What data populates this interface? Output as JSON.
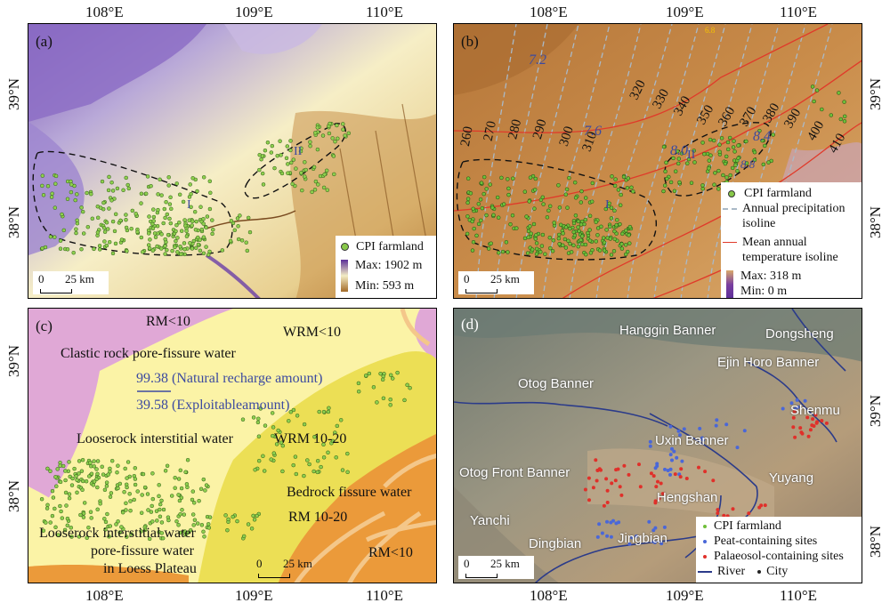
{
  "axes": {
    "lon_top_a": [
      "108°E",
      "109°E",
      "110°E"
    ],
    "lon_top_b": [
      "108°E",
      "109°E",
      "110°E"
    ],
    "lon_bottom_c": [
      "108°E",
      "109°E",
      "110°E"
    ],
    "lon_bottom_d": [
      "108°E",
      "109°E",
      "110°E"
    ],
    "lat_left_a": [
      "39°N",
      "38°N"
    ],
    "lat_right_b": [
      "39°N",
      "38°N"
    ],
    "lat_left_c": [
      "39°N",
      "38°N"
    ],
    "lat_right_d": [
      "39°N",
      "38°N"
    ]
  },
  "panel_a": {
    "label": "(a)",
    "region_labels": [
      "I",
      "II"
    ],
    "legend": {
      "farmland": "CPI farmland",
      "max": "Max: 1902 m",
      "min": "Min: 593 m"
    },
    "scale": {
      "zero": "0",
      "dist": "25 km"
    },
    "colors": {
      "high": "#6a3fa8",
      "mid": "#f3e7b0",
      "low": "#b37a33"
    }
  },
  "panel_b": {
    "label": "(b)",
    "region_labels": [
      "I",
      "II"
    ],
    "precip_labels": [
      "260",
      "270",
      "280",
      "290",
      "300",
      "310",
      "320",
      "330",
      "340",
      "350",
      "360",
      "370",
      "380",
      "390",
      "400",
      "410"
    ],
    "temp_labels": [
      "7.2",
      "7.6",
      "8.0",
      "8.4",
      "8.8",
      "6.8"
    ],
    "legend": {
      "farmland": "CPI farmland",
      "precip_line1": "Annual precipitation",
      "precip_line2": "isoline",
      "temp_line1": "Mean annual",
      "temp_line2": "temperature isoline",
      "max": "Max: 318 m",
      "min": "Min: 0 m"
    },
    "scale": {
      "zero": "0",
      "dist": "25 km"
    }
  },
  "panel_c": {
    "label": "(c)",
    "texts": {
      "rm_top": "RM<10",
      "wrm_top": "WRM<10",
      "clastic": "Clastic rock pore-fissure water",
      "natural": "99.38 (Natural recharge amount)",
      "exploitable": "39.58 (Exploitableamount)",
      "loose": "Looserock interstitial water",
      "wrm_mid": "WRM 10-20",
      "bedrock": "Bedrock fissure water",
      "rm_mid": "RM 10-20",
      "loess1": "Looserock interstitial water",
      "loess2": "pore-fissure water",
      "loess3": "in Loess Plateau",
      "rm_bottom": "RM<10"
    },
    "scale": {
      "zero": "0",
      "dist": "25 km"
    },
    "colors": {
      "pink": "#e0a8d6",
      "cream": "#fbf3a6",
      "yellow": "#ecdf55",
      "orange": "#eb9a3a"
    }
  },
  "panel_d": {
    "label": "(d)",
    "cities": [
      "Hanggin Banner",
      "Dongsheng",
      "Ejin Horo Banner",
      "Otog Banner",
      "Shenmu",
      "Uxin Banner",
      "Yuyang",
      "Otog Front Banner",
      "Hengshan",
      "Yanchi",
      "Dingbian",
      "Jingbian"
    ],
    "legend": {
      "farmland": "CPI farmland",
      "peat": "Peat-containing sites",
      "palaeosol": "Palaeosol-containing sites",
      "river": "River",
      "city": "City"
    },
    "scale": {
      "zero": "0",
      "dist": "25 km"
    }
  }
}
